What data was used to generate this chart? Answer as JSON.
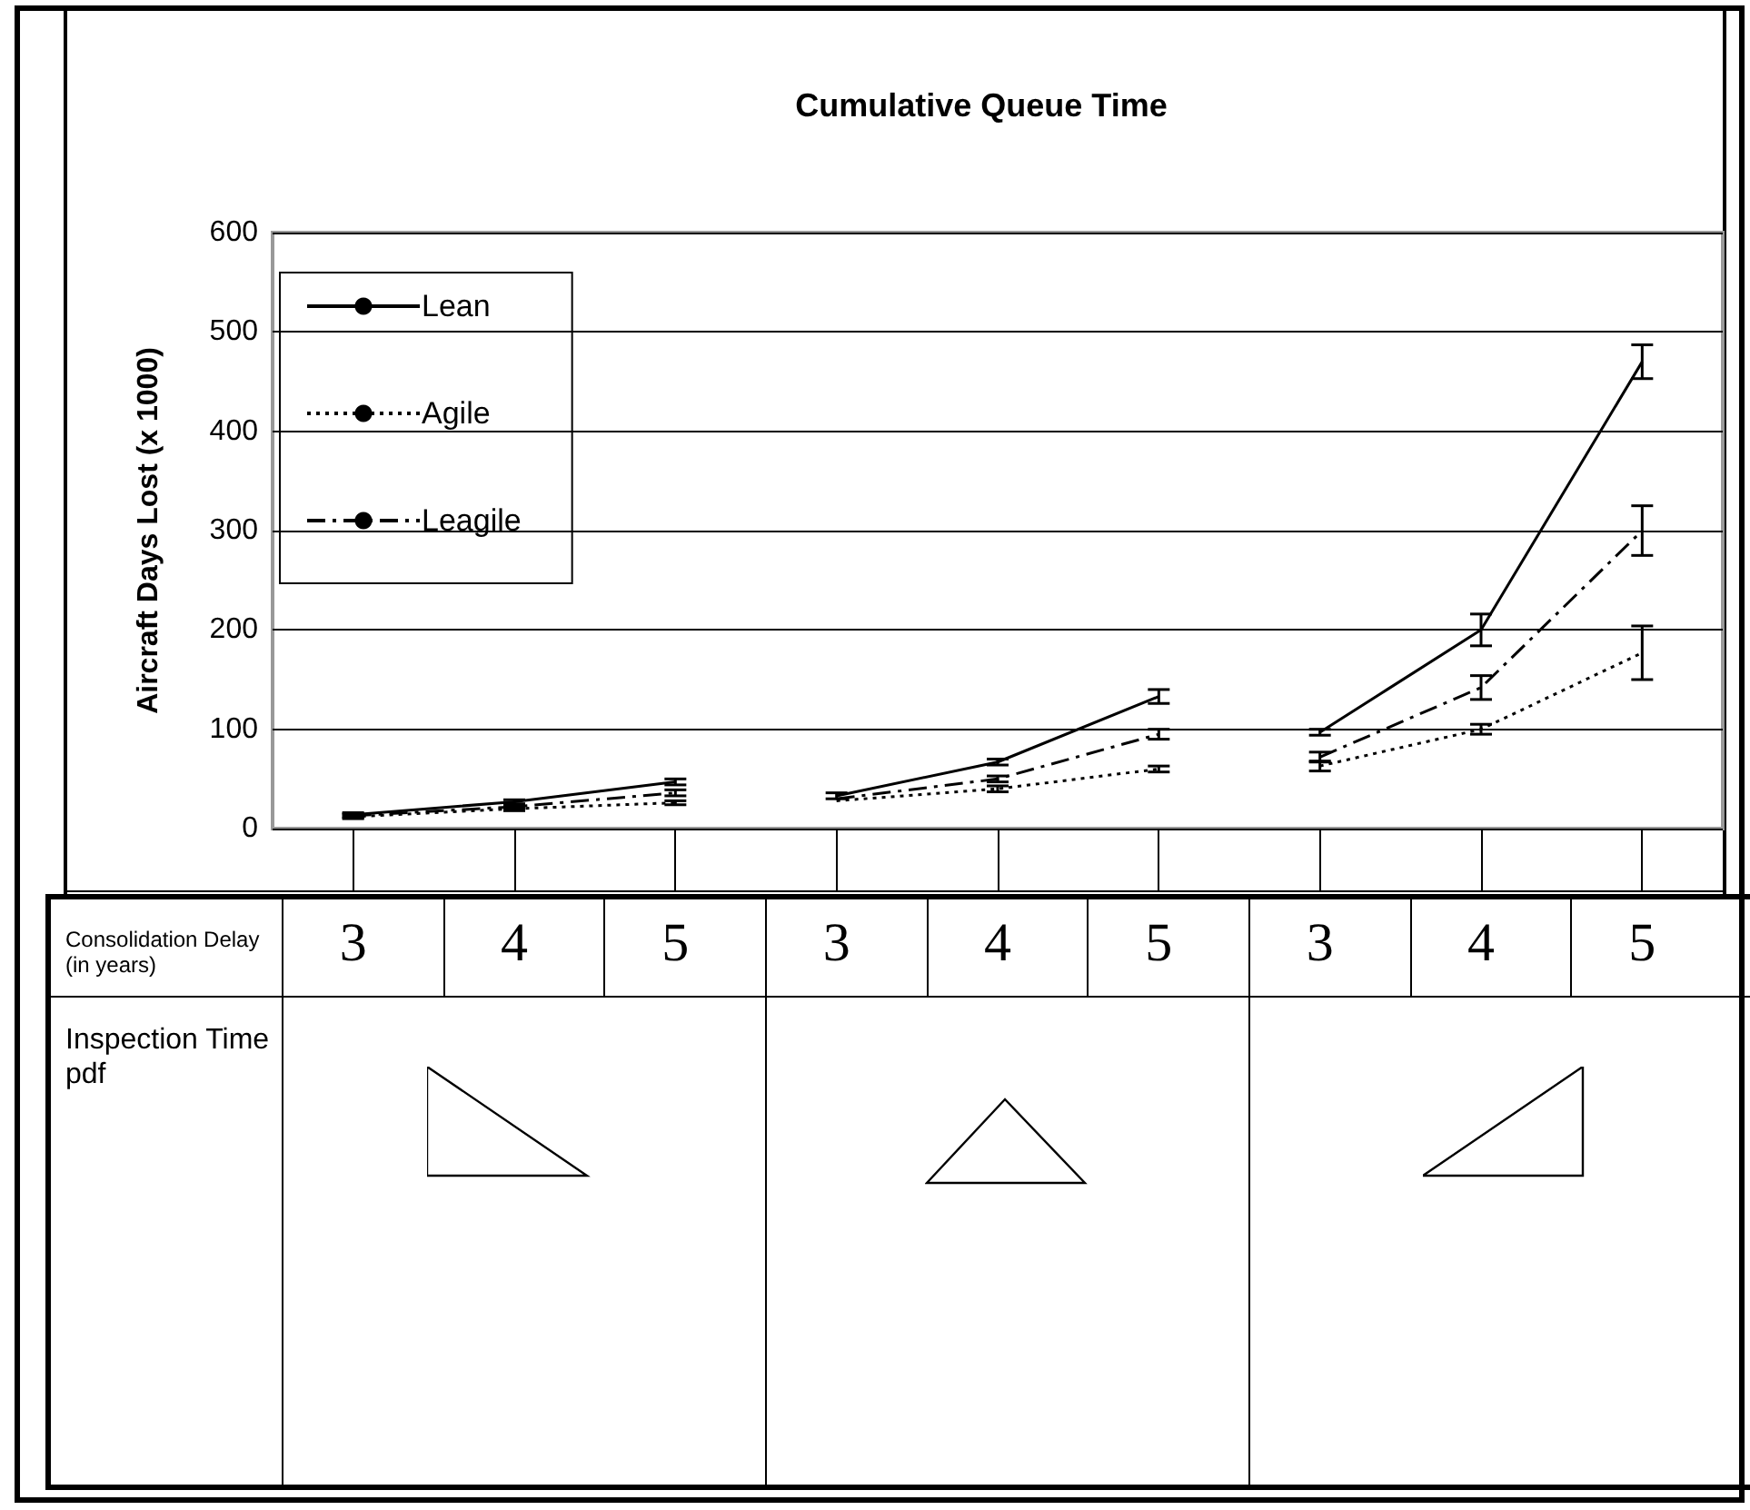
{
  "chart_data": {
    "type": "line",
    "title": "Cumulative Queue Time",
    "ylabel": "Aircraft Days Lost (x 1000)",
    "xlabel": "Consolidation Delay (in years)",
    "annotations": [
      "Inspection Time pdf"
    ],
    "categories": [
      "3",
      "4",
      "5",
      "3",
      "4",
      "5",
      "3",
      "4",
      "5"
    ],
    "series": [
      {
        "name": "Lean",
        "color": "#000000",
        "line_style": "solid",
        "values": [
          14,
          27,
          47,
          null,
          null,
          null,
          null,
          null,
          null
        ],
        "errors": [
          2,
          2,
          3,
          null,
          null,
          null,
          null,
          null,
          null
        ]
      },
      {
        "name": "Agile",
        "color": "#000000",
        "line_style": "dotted",
        "values": [
          12,
          20,
          26,
          null,
          null,
          null,
          null,
          null,
          null
        ],
        "errors": [
          2,
          2,
          2,
          null,
          null,
          null,
          null,
          null,
          null
        ]
      },
      {
        "name": "Leagile",
        "color": "#000000",
        "line_style": "dashed",
        "values": [
          13,
          22,
          36,
          null,
          null,
          null,
          null,
          null,
          null
        ],
        "errors": [
          2,
          2,
          3,
          null,
          null,
          null,
          null,
          null,
          null
        ]
      },
      {
        "color": "#000000",
        "line_style": "solid",
        "values": [
          null,
          null,
          null,
          33,
          67,
          133,
          null,
          null,
          null
        ],
        "errors": [
          null,
          null,
          null,
          3,
          3,
          7,
          null,
          null,
          null
        ]
      },
      {
        "color": "#000000",
        "line_style": "dotted",
        "values": [
          null,
          null,
          null,
          28,
          40,
          60,
          null,
          null,
          null
        ],
        "errors": [
          null,
          null,
          null,
          null,
          3,
          3,
          null,
          null,
          null
        ]
      },
      {
        "color": "#000000",
        "line_style": "dashed",
        "values": [
          null,
          null,
          null,
          30,
          50,
          95,
          null,
          null,
          null
        ],
        "errors": [
          null,
          null,
          null,
          null,
          3,
          5,
          null,
          null,
          null
        ]
      },
      {
        "color": "#000000",
        "line_style": "solid",
        "values": [
          null,
          null,
          null,
          null,
          null,
          null,
          97,
          200,
          470
        ],
        "errors": [
          null,
          null,
          null,
          null,
          null,
          null,
          3,
          16,
          17
        ]
      },
      {
        "color": "#000000",
        "line_style": "dotted",
        "values": [
          null,
          null,
          null,
          null,
          null,
          null,
          63,
          100,
          177
        ],
        "errors": [
          null,
          null,
          null,
          null,
          null,
          null,
          5,
          5,
          27
        ]
      },
      {
        "color": "#000000",
        "line_style": "dashed",
        "values": [
          null,
          null,
          null,
          null,
          null,
          null,
          72,
          142,
          300
        ],
        "errors": [
          null,
          null,
          null,
          null,
          null,
          null,
          5,
          12,
          25
        ]
      }
    ],
    "ylim": [
      0,
      600
    ],
    "yticks": [
      0,
      100,
      200,
      300,
      400,
      500,
      600
    ],
    "grid": "y",
    "legend": "top left",
    "marker": "none"
  }
}
